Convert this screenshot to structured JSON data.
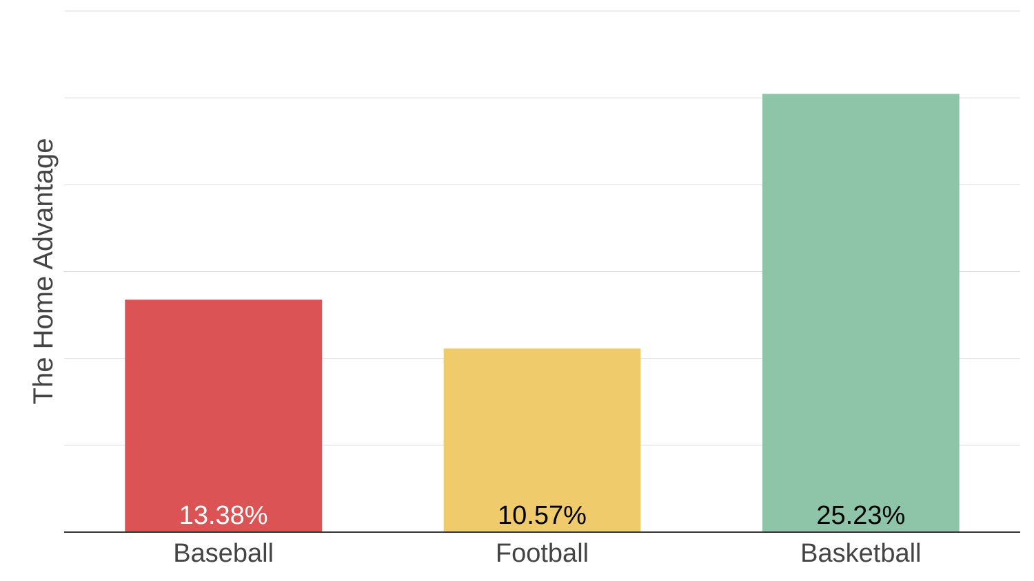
{
  "chart_data": {
    "type": "bar",
    "title": "",
    "xlabel": "",
    "ylabel": "The Home Advantage",
    "categories": [
      "Baseball",
      "Football",
      "Basketball"
    ],
    "values": [
      13.38,
      10.57,
      25.23
    ],
    "value_labels": [
      "13.38%",
      "10.57%",
      "25.23%"
    ],
    "colors": [
      "#db5355",
      "#efcb6c",
      "#8ec4a8"
    ],
    "label_colors": [
      "#ffffff",
      "#000000",
      "#000000"
    ],
    "ylim": [
      0,
      30
    ],
    "grid": true,
    "gridline_count": 6,
    "legend": "none"
  }
}
